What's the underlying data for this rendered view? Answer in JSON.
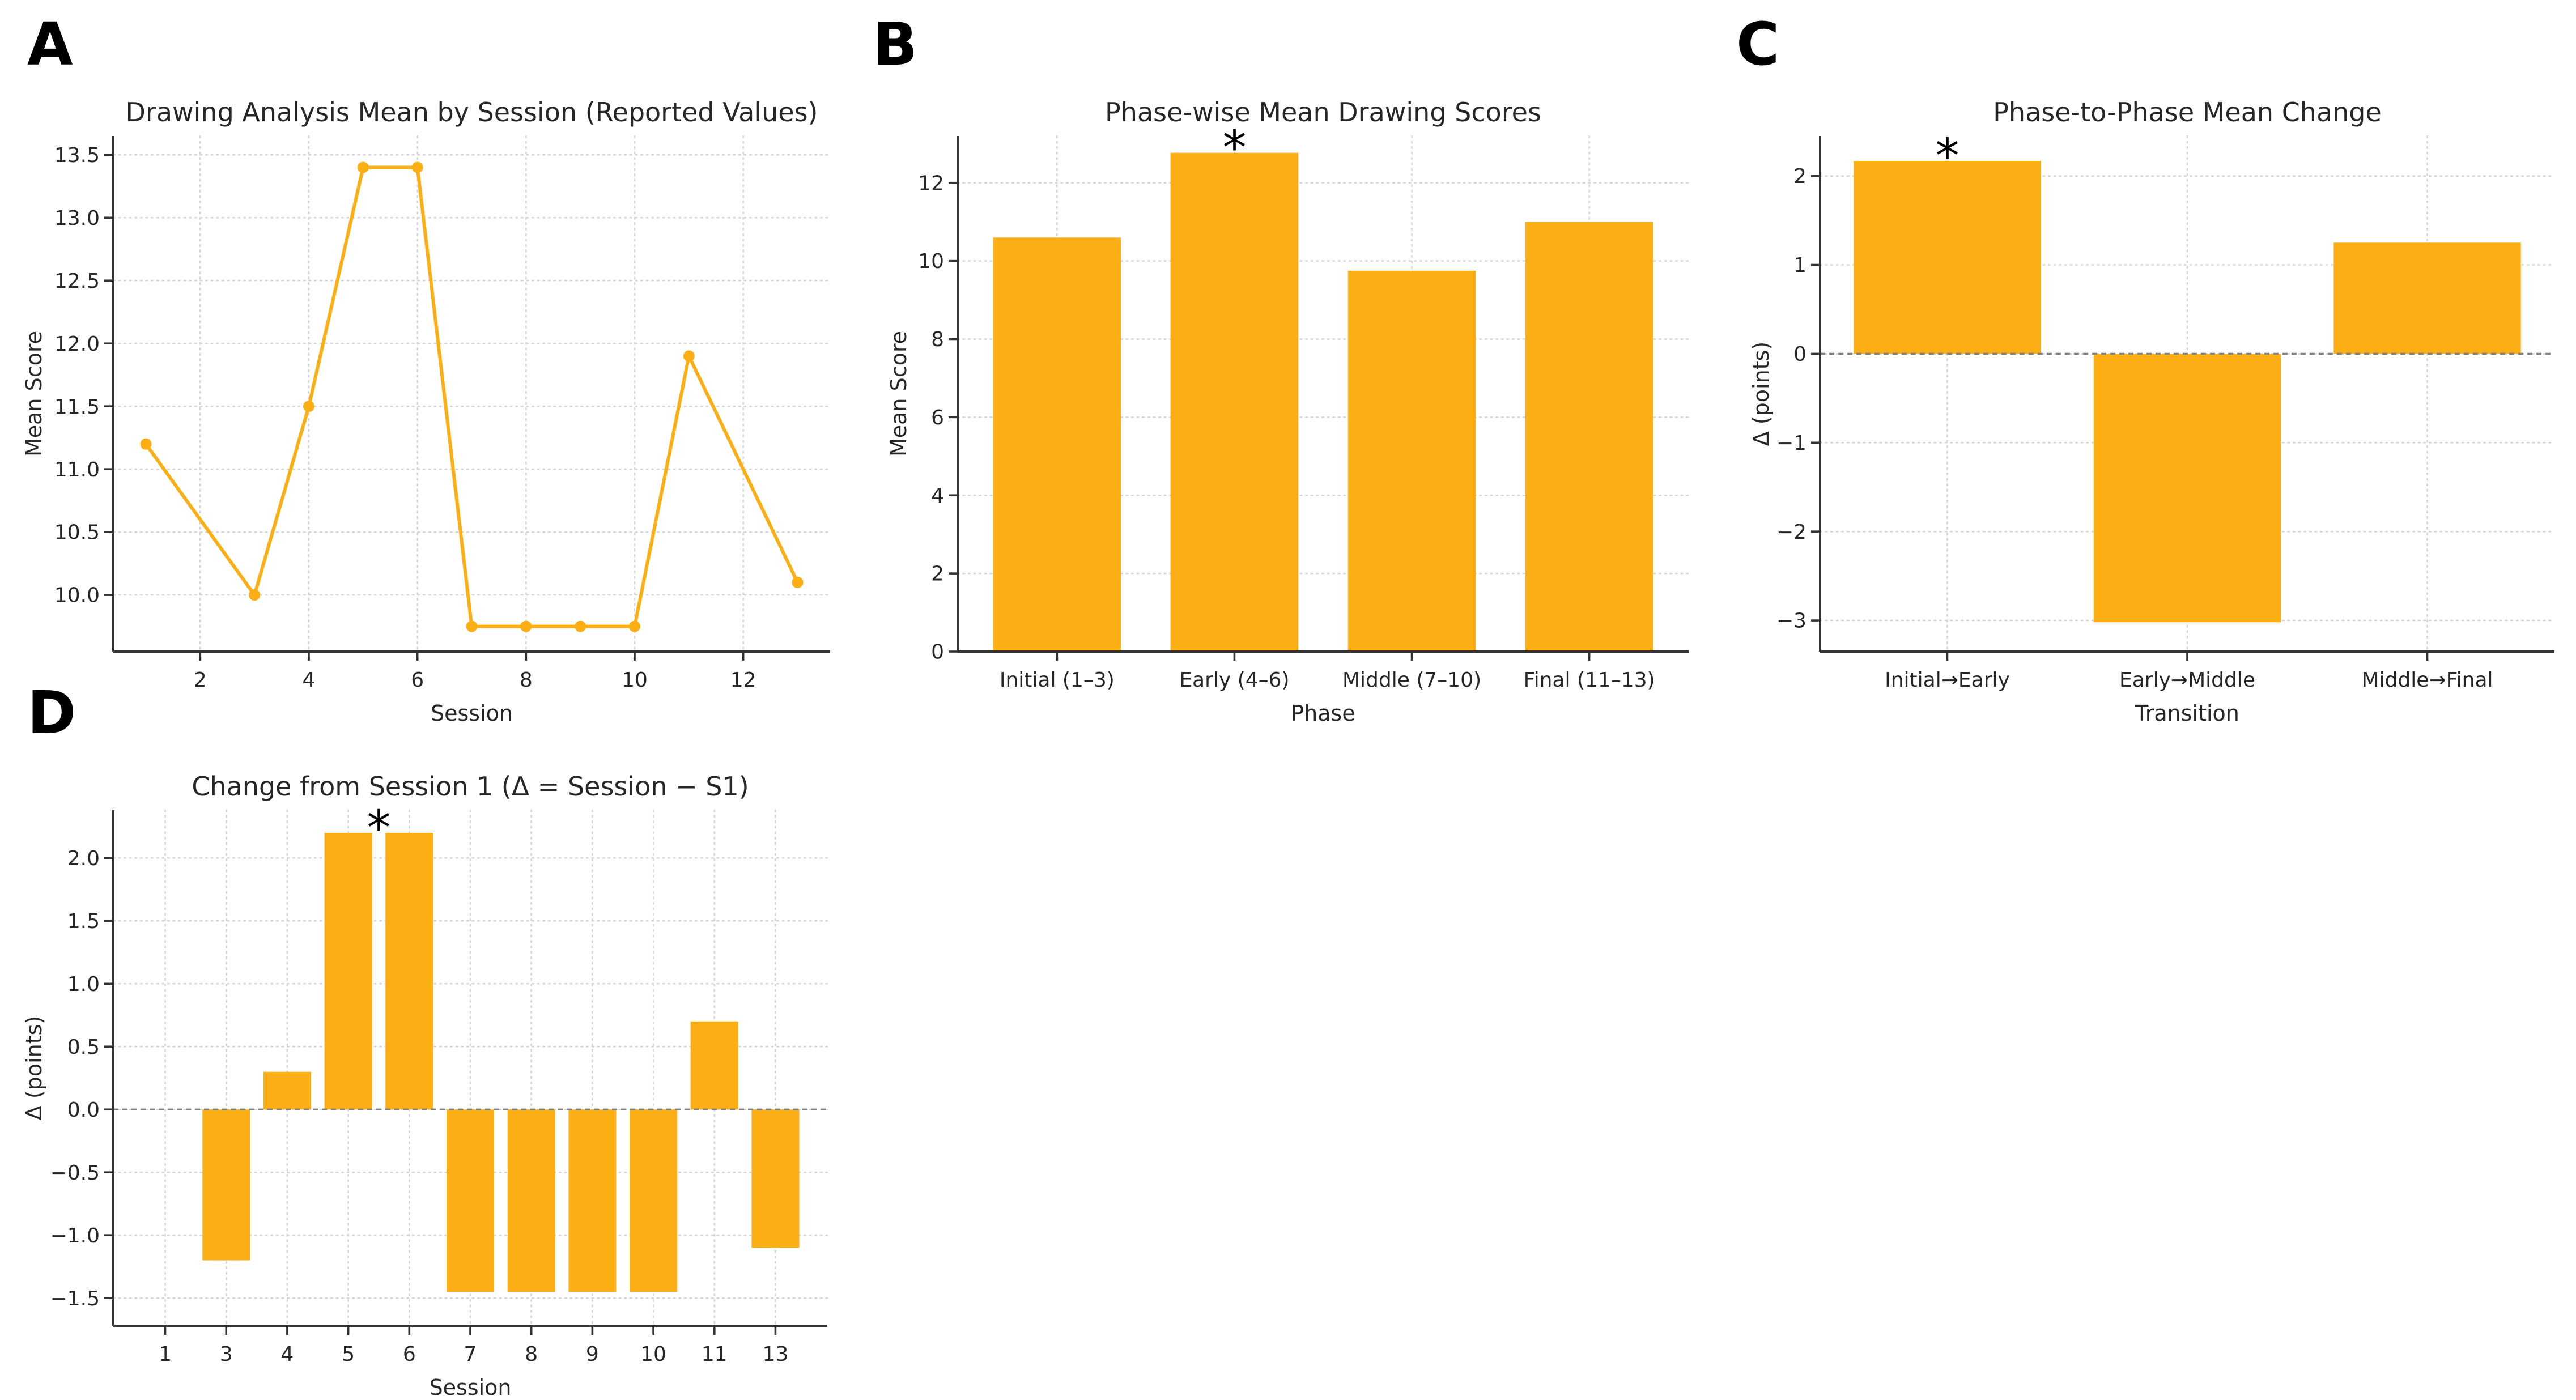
{
  "figure": {
    "background": "#ffffff",
    "accent_color": "#FCAF14",
    "text_color": "#262626"
  },
  "chart_data": [
    {
      "id": "A",
      "letter": "A",
      "type": "line",
      "title": "Drawing Analysis Mean by Session (Reported Values)",
      "xlabel": "Session",
      "ylabel": "Mean Score",
      "x": [
        1,
        3,
        4,
        5,
        6,
        7,
        8,
        9,
        10,
        11,
        13
      ],
      "values": [
        11.2,
        10.0,
        11.5,
        13.4,
        13.4,
        9.75,
        9.75,
        9.75,
        9.75,
        11.9,
        10.1
      ],
      "xlim": [
        0.4,
        13.6
      ],
      "ylim": [
        9.55,
        13.65
      ],
      "xticks": [
        2,
        4,
        6,
        8,
        10,
        12
      ],
      "xtick_decimals": 0,
      "yticks": [
        10.0,
        10.5,
        11.0,
        11.5,
        12.0,
        12.5,
        13.0,
        13.5
      ],
      "ytick_decimals": 1,
      "grid": true,
      "color": "#FCAF14",
      "marker": "circle"
    },
    {
      "id": "B",
      "letter": "B",
      "type": "bar",
      "title": "Phase-wise Mean Drawing Scores",
      "xlabel": "Phase",
      "ylabel": "Mean Score",
      "categories": [
        "Initial (1–3)",
        "Early (4–6)",
        "Middle (7–10)",
        "Final (11–13)"
      ],
      "values": [
        10.6,
        12.77,
        9.75,
        11.0
      ],
      "ylim": [
        0,
        13.2
      ],
      "yticks": [
        0,
        2,
        4,
        6,
        8,
        10,
        12
      ],
      "ytick_decimals": 0,
      "grid": true,
      "zero_line": false,
      "color": "#FCAF14",
      "annotation": {
        "text": "*",
        "x": 1,
        "value": 12.77
      }
    },
    {
      "id": "C",
      "letter": "C",
      "type": "bar",
      "title": "Phase-to-Phase Mean Change",
      "xlabel": "Transition",
      "ylabel": "Δ (points)",
      "categories": [
        "Initial→Early",
        "Early→Middle",
        "Middle→Final"
      ],
      "values": [
        2.17,
        -3.02,
        1.25
      ],
      "ylim": [
        -3.35,
        2.45
      ],
      "yticks": [
        -3,
        -2,
        -1,
        0,
        1,
        2
      ],
      "ytick_decimals": 0,
      "grid": true,
      "zero_line": true,
      "color": "#FCAF14",
      "annotation": {
        "text": "*",
        "x": 0,
        "value": 2.17
      }
    },
    {
      "id": "D",
      "letter": "D",
      "type": "bar",
      "title": "Change from Session 1 (Δ = Session − S1)",
      "xlabel": "Session",
      "ylabel": "Δ (points)",
      "categories": [
        "1",
        "3",
        "4",
        "5",
        "6",
        "7",
        "8",
        "9",
        "10",
        "11",
        "13"
      ],
      "values": [
        0,
        -1.2,
        0.3,
        2.2,
        2.2,
        -1.45,
        -1.45,
        -1.45,
        -1.45,
        0.7,
        -1.1
      ],
      "ylim": [
        -1.72,
        2.38
      ],
      "yticks": [
        -1.5,
        -1.0,
        -0.5,
        0.0,
        0.5,
        1.0,
        1.5,
        2.0
      ],
      "ytick_decimals": 1,
      "grid": true,
      "zero_line": true,
      "color": "#FCAF14",
      "annotation": {
        "text": "*",
        "x": 3.5,
        "value": 2.2
      }
    }
  ]
}
